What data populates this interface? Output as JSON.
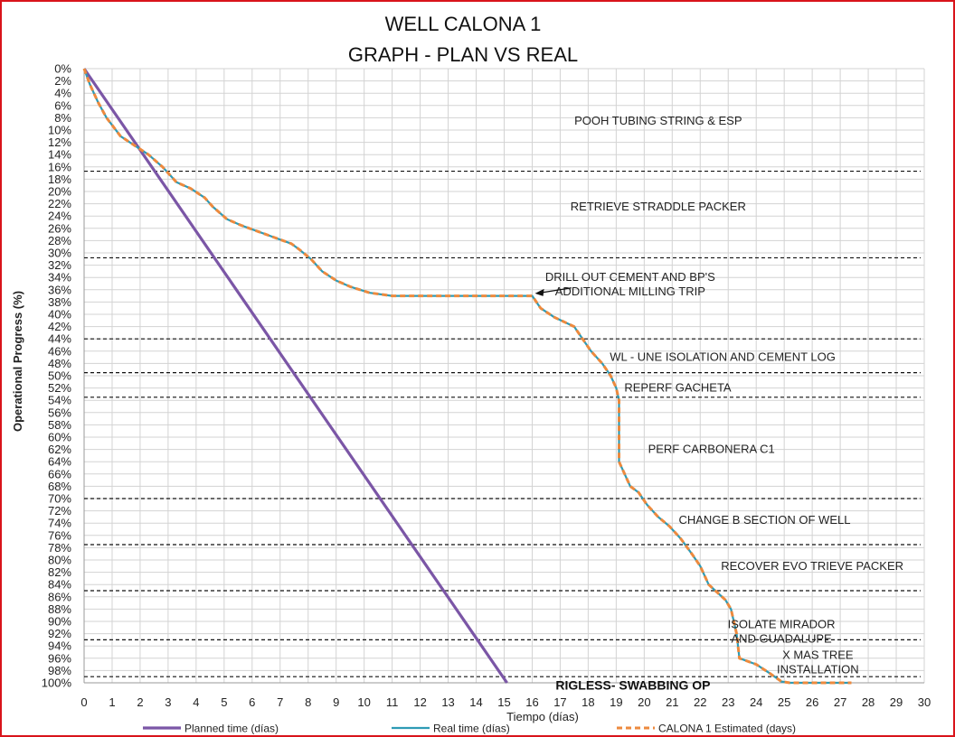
{
  "chart_data": {
    "type": "line",
    "title": "WELL CALONA 1",
    "subtitle": "GRAPH  - PLAN VS REAL",
    "xlabel": "Tiempo (días)",
    "ylabel": "Operational Progress (%)",
    "xlim": [
      0,
      30
    ],
    "ylim": [
      0,
      100
    ],
    "y_inverted": true,
    "grid": true,
    "legend_position": "bottom",
    "x_ticks": [
      0,
      1,
      2,
      3,
      4,
      5,
      6,
      7,
      8,
      9,
      10,
      11,
      12,
      13,
      14,
      15,
      16,
      17,
      18,
      19,
      20,
      21,
      22,
      23,
      24,
      25,
      26,
      27,
      28,
      29,
      30
    ],
    "y_ticks": [
      "0%",
      "2%",
      "4%",
      "6%",
      "8%",
      "10%",
      "12%",
      "14%",
      "16%",
      "18%",
      "20%",
      "22%",
      "24%",
      "26%",
      "28%",
      "30%",
      "32%",
      "34%",
      "36%",
      "38%",
      "40%",
      "42%",
      "44%",
      "46%",
      "48%",
      "50%",
      "52%",
      "54%",
      "56%",
      "58%",
      "60%",
      "62%",
      "64%",
      "66%",
      "68%",
      "70%",
      "72%",
      "74%",
      "76%",
      "78%",
      "80%",
      "82%",
      "84%",
      "86%",
      "88%",
      "90%",
      "92%",
      "94%",
      "96%",
      "98%",
      "100%"
    ],
    "series": [
      {
        "name": "Planned time (días)",
        "color": "#7b56a6",
        "style": "solid",
        "x": [
          0,
          15.1
        ],
        "y": [
          0,
          100
        ]
      },
      {
        "name": "Real time (días)",
        "color": "#2e9bb5",
        "style": "solid",
        "x": [
          0,
          0.2,
          0.5,
          0.8,
          1.3,
          1.8,
          2.3,
          2.8,
          3.3,
          3.8,
          4.3,
          4.6,
          5.1,
          5.6,
          6.2,
          6.8,
          7.4,
          7.7,
          8.1,
          8.5,
          9.0,
          9.5,
          10.2,
          11.0,
          12.0,
          13.0,
          14.0,
          15.0,
          16.0,
          16.3,
          16.8,
          17.5,
          17.8,
          18.1,
          18.5,
          18.8,
          19.0,
          19.1,
          19.1,
          19.1,
          19.3,
          19.5,
          19.8,
          20.1,
          20.5,
          20.9,
          21.3,
          21.7,
          22.0,
          22.3,
          22.9,
          23.1,
          23.2,
          23.3,
          23.4,
          24.0,
          24.5,
          24.9,
          25.2,
          26.0,
          27.0,
          27.4
        ],
        "y": [
          0,
          2.5,
          5.5,
          8,
          11,
          12.5,
          14,
          16,
          18.5,
          19.5,
          21,
          22.5,
          24.5,
          25.5,
          26.5,
          27.5,
          28.5,
          29.5,
          31,
          33,
          34.5,
          35.5,
          36.5,
          37,
          37,
          37,
          37,
          37,
          37,
          39,
          40.5,
          42,
          44,
          46,
          48,
          50,
          52,
          54,
          62,
          64,
          66,
          68,
          69,
          71,
          73,
          74.5,
          76.5,
          79,
          81,
          84,
          86.5,
          88,
          90,
          92,
          96,
          97,
          98.5,
          99.8,
          100,
          100,
          100,
          100
        ]
      },
      {
        "name": "CALONA 1 Estimated (days)",
        "color": "#ed8a3e",
        "style": "dashed",
        "x": [
          0,
          0.2,
          0.5,
          0.8,
          1.3,
          1.8,
          2.3,
          2.8,
          3.3,
          3.8,
          4.3,
          4.6,
          5.1,
          5.6,
          6.2,
          6.8,
          7.4,
          7.7,
          8.1,
          8.5,
          9.0,
          9.5,
          10.2,
          11.0,
          12.0,
          13.0,
          14.0,
          15.0,
          16.0,
          16.3,
          16.8,
          17.5,
          17.8,
          18.1,
          18.5,
          18.8,
          19.0,
          19.1,
          19.1,
          19.1,
          19.3,
          19.5,
          19.8,
          20.1,
          20.5,
          20.9,
          21.3,
          21.7,
          22.0,
          22.3,
          22.9,
          23.1,
          23.2,
          23.3,
          23.4,
          24.0,
          24.5,
          24.9,
          25.2,
          26.0,
          27.0,
          27.4
        ],
        "y": [
          0,
          2.5,
          5.5,
          8,
          11,
          12.5,
          14,
          16,
          18.5,
          19.5,
          21,
          22.5,
          24.5,
          25.5,
          26.5,
          27.5,
          28.5,
          29.5,
          31,
          33,
          34.5,
          35.5,
          36.5,
          37,
          37,
          37,
          37,
          37,
          37,
          39,
          40.5,
          42,
          44,
          46,
          48,
          50,
          52,
          54,
          62,
          64,
          66,
          68,
          69,
          71,
          73,
          74.5,
          76.5,
          79,
          81,
          84,
          86.5,
          88,
          90,
          92,
          96,
          97,
          98.5,
          99.8,
          100,
          100,
          100,
          100
        ]
      }
    ],
    "phase_lines": [
      16.7,
      30.8,
      44,
      49.5,
      53.5,
      70,
      77.5,
      85,
      93,
      99
    ],
    "phase_labels": [
      {
        "lines": [
          "POOH TUBING STRING & ESP"
        ],
        "x": 20.5,
        "y": 8.5
      },
      {
        "lines": [
          "RETRIEVE STRADDLE PACKER"
        ],
        "x": 20.5,
        "y": 22.5
      },
      {
        "lines": [
          "DRILL OUT CEMENT AND BP'S",
          "ADDITIONAL MILLING TRIP"
        ],
        "x": 19.5,
        "y": 34
      },
      {
        "lines": [
          "WL - UNE ISOLATION AND CEMENT LOG"
        ],
        "x": 22.8,
        "y": 47
      },
      {
        "lines": [
          "REPERF GACHETA"
        ],
        "x": 21.2,
        "y": 52
      },
      {
        "lines": [
          "PERF CARBONERA C1"
        ],
        "x": 22.4,
        "y": 62
      },
      {
        "lines": [
          "CHANGE B SECTION OF WELL"
        ],
        "x": 24.3,
        "y": 73.5
      },
      {
        "lines": [
          "RECOVER EVO TRIEVE PACKER"
        ],
        "x": 26.0,
        "y": 81
      },
      {
        "lines": [
          "ISOLATE MIRADOR",
          "AND GUADALUPE"
        ],
        "x": 24.9,
        "y": 90.5
      },
      {
        "lines": [
          "X MAS TREE",
          "INSTALLATION"
        ],
        "x": 26.2,
        "y": 95.5
      },
      {
        "lines": [
          "RIGLESS- SWABBING OP"
        ],
        "x": 19.6,
        "y": 100.5,
        "bold": true
      }
    ],
    "annotations": [
      {
        "type": "arrow",
        "from": [
          17.4,
          35.7
        ],
        "to": [
          16.1,
          36.6
        ]
      }
    ]
  }
}
